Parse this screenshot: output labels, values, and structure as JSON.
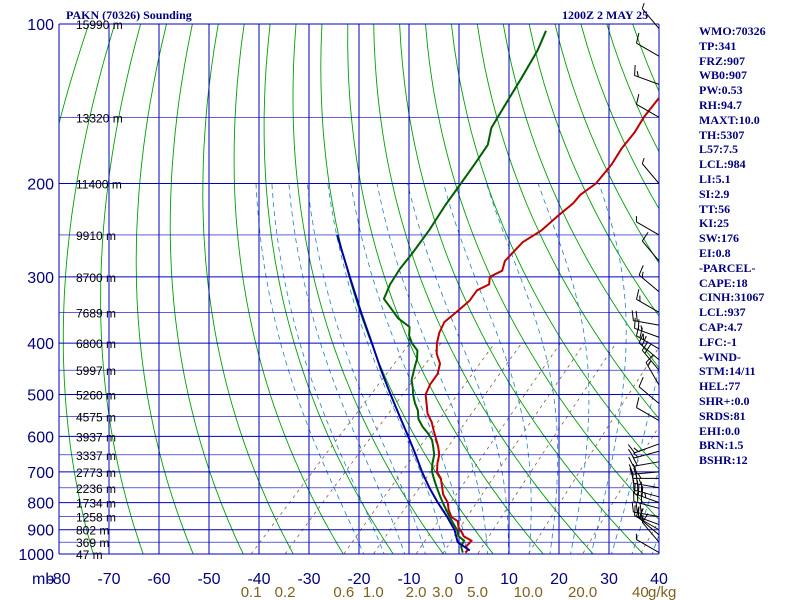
{
  "header": {
    "title": "PAKN (70326) Sounding",
    "timestamp": "1200Z  2 MAY 25"
  },
  "indices": [
    "WMO:70326",
    "TP:341",
    "FRZ:907",
    "WB0:907",
    "PW:0.53",
    "RH:94.7",
    "MAXT:10.0",
    "TH:5307",
    "L57:7.5",
    "LCL:984",
    "LI:5.1",
    "SI:2.9",
    "TT:56",
    "KI:25",
    "SW:176",
    "EI:0.8",
    "-PARCEL-",
    "CAPE:18",
    "CINH:31067",
    "LCL:937",
    "CAP:4.7",
    "LFC:-1",
    "-WIND-",
    "STM:14/11",
    "HEL:77",
    "SHR+:0.0",
    "SRDS:81",
    "EHI:0.0",
    "BRN:1.5",
    "BSHR:12"
  ],
  "colors": {
    "axis_text": "#000080",
    "isobar_isotherm": "#0000c0",
    "dry_adiabat": "#00a000",
    "moist_adiabat": "#2080c0",
    "mixing_ratio": "#806040",
    "temperature": "#c00000",
    "dewpoint": "#006000",
    "parcel": "#0000a0",
    "wind_barb": "#000000"
  },
  "chart_data": {
    "type": "line",
    "ylabel": "mb",
    "y_scale": "log",
    "ylim": [
      1000,
      100
    ],
    "xlim": [
      -80,
      40
    ],
    "pressure_ticks": [
      100,
      200,
      300,
      400,
      500,
      600,
      700,
      800,
      900,
      1000
    ],
    "temperature_ticks": [
      -80,
      -70,
      -60,
      -50,
      -40,
      -30,
      -20,
      -10,
      0,
      10,
      20,
      30,
      40
    ],
    "height_labels": [
      {
        "p": 100,
        "label": "15990 m"
      },
      {
        "p": 150,
        "label": "13320 m"
      },
      {
        "p": 200,
        "label": "11400 m"
      },
      {
        "p": 250,
        "label": "9910 m"
      },
      {
        "p": 300,
        "label": "8700 m"
      },
      {
        "p": 350,
        "label": "7689 m"
      },
      {
        "p": 400,
        "label": "6800 m"
      },
      {
        "p": 450,
        "label": "5997 m"
      },
      {
        "p": 500,
        "label": "5260 m"
      },
      {
        "p": 550,
        "label": "4575 m"
      },
      {
        "p": 600,
        "label": "3937 m"
      },
      {
        "p": 650,
        "label": "3337 m"
      },
      {
        "p": 700,
        "label": "2773 m"
      },
      {
        "p": 750,
        "label": "2236 m"
      },
      {
        "p": 800,
        "label": "1734 m"
      },
      {
        "p": 850,
        "label": "1258 m"
      },
      {
        "p": 900,
        "label": "802 m"
      },
      {
        "p": 950,
        "label": "369 m"
      },
      {
        "p": 1000,
        "label": "47 m"
      }
    ],
    "mixing_ratio_ticks": [
      {
        "w": 0.1,
        "label": "0.1"
      },
      {
        "w": 0.2,
        "label": "0.2"
      },
      {
        "w": 0.6,
        "label": "0.6"
      },
      {
        "w": 1.0,
        "label": "1.0"
      },
      {
        "w": 2.0,
        "label": "2.0"
      },
      {
        "w": 3.0,
        "label": "3.0"
      },
      {
        "w": 5.0,
        "label": "5.0"
      },
      {
        "w": 10.0,
        "label": "10.0"
      },
      {
        "w": 20.0,
        "label": "20.0"
      },
      {
        "w": 40.0,
        "label": "40"
      }
    ],
    "mixing_ratio_unit": "g/kg",
    "series": [
      {
        "id": "temperature",
        "points": [
          [
            994,
            1.0
          ],
          [
            983,
            1.0
          ],
          [
            968,
            0.0
          ],
          [
            944,
            0.0
          ],
          [
            925,
            -2.5
          ],
          [
            911,
            -3.5
          ],
          [
            893,
            -5.0
          ],
          [
            867,
            -6.5
          ],
          [
            852,
            -8.5
          ],
          [
            825,
            -10.5
          ],
          [
            800,
            -12.0
          ],
          [
            772,
            -14.5
          ],
          [
            749,
            -16.0
          ],
          [
            720,
            -18.0
          ],
          [
            700,
            -20.0
          ],
          [
            675,
            -21.5
          ],
          [
            650,
            -22.8
          ],
          [
            628,
            -24.5
          ],
          [
            606,
            -26.5
          ],
          [
            585,
            -28.5
          ],
          [
            564,
            -30.5
          ],
          [
            543,
            -33.0
          ],
          [
            521,
            -35.0
          ],
          [
            500,
            -37.0
          ],
          [
            479,
            -38.0
          ],
          [
            457,
            -38.5
          ],
          [
            437,
            -40.0
          ],
          [
            419,
            -42.5
          ],
          [
            400,
            -44.5
          ],
          [
            382,
            -46.0
          ],
          [
            365,
            -47.0
          ],
          [
            350,
            -46.5
          ],
          [
            333,
            -46.0
          ],
          [
            318,
            -46.5
          ],
          [
            310,
            -45.2
          ],
          [
            300,
            -46.5
          ],
          [
            292,
            -45.2
          ],
          [
            280,
            -46.5
          ],
          [
            269,
            -46.5
          ],
          [
            258,
            -46.5
          ],
          [
            245,
            -45.0
          ],
          [
            231,
            -44.5
          ],
          [
            218,
            -43.8
          ],
          [
            210,
            -44.0
          ],
          [
            200,
            -43.0
          ],
          [
            184,
            -43.5
          ],
          [
            172,
            -44.5
          ],
          [
            160,
            -45.0
          ],
          [
            150,
            -46.0
          ],
          [
            141,
            -46.5
          ],
          [
            131,
            -47.0
          ],
          [
            120,
            -48.0
          ],
          [
            108,
            -49.5
          ],
          [
            100,
            -50.0
          ]
        ]
      },
      {
        "id": "dewpoint",
        "points": [
          [
            994,
            0.5
          ],
          [
            968,
            -1.0
          ],
          [
            944,
            -1.5
          ],
          [
            925,
            -3.5
          ],
          [
            900,
            -5.0
          ],
          [
            875,
            -7.0
          ],
          [
            850,
            -9.0
          ],
          [
            825,
            -11.0
          ],
          [
            800,
            -13.0
          ],
          [
            775,
            -15.0
          ],
          [
            750,
            -17.0
          ],
          [
            725,
            -19.0
          ],
          [
            700,
            -21.0
          ],
          [
            675,
            -22.5
          ],
          [
            650,
            -23.8
          ],
          [
            628,
            -25.5
          ],
          [
            610,
            -27.0
          ],
          [
            593,
            -29.0
          ],
          [
            575,
            -31.5
          ],
          [
            556,
            -33.8
          ],
          [
            536,
            -35.5
          ],
          [
            519,
            -37.5
          ],
          [
            500,
            -39.5
          ],
          [
            484,
            -41.0
          ],
          [
            470,
            -42.5
          ],
          [
            456,
            -43.5
          ],
          [
            442,
            -44.5
          ],
          [
            428,
            -45.5
          ],
          [
            413,
            -47.0
          ],
          [
            400,
            -49.5
          ],
          [
            387,
            -51.5
          ],
          [
            373,
            -53.0
          ],
          [
            359,
            -57.0
          ],
          [
            343,
            -60.5
          ],
          [
            330,
            -63.5
          ],
          [
            310,
            -65.0
          ],
          [
            290,
            -66.0
          ],
          [
            270,
            -66.5
          ],
          [
            245,
            -67.5
          ],
          [
            220,
            -69.0
          ],
          [
            200,
            -70.0
          ],
          [
            183,
            -71.0
          ],
          [
            169,
            -72.0
          ],
          [
            157,
            -74.5
          ],
          [
            143,
            -76.0
          ],
          [
            126,
            -78.0
          ],
          [
            112,
            -80.0
          ],
          [
            103,
            -82.0
          ]
        ]
      },
      {
        "id": "parcel",
        "points": [
          [
            985,
            1.5
          ],
          [
            950,
            -2.5
          ],
          [
            900,
            -5.5
          ],
          [
            850,
            -9.5
          ],
          [
            800,
            -14.0
          ],
          [
            750,
            -18.5
          ],
          [
            700,
            -23.0
          ],
          [
            650,
            -27.5
          ],
          [
            600,
            -32.5
          ],
          [
            550,
            -38.0
          ],
          [
            500,
            -44.0
          ],
          [
            450,
            -50.5
          ],
          [
            400,
            -57.5
          ],
          [
            350,
            -65.5
          ],
          [
            300,
            -74.5
          ],
          [
            250,
            -85.0
          ]
        ]
      }
    ],
    "wind_barbs": [
      {
        "p": 994,
        "dir": 300,
        "kt": 5
      },
      {
        "p": 950,
        "dir": 320,
        "kt": 10
      },
      {
        "p": 920,
        "dir": 310,
        "kt": 15
      },
      {
        "p": 900,
        "dir": 300,
        "kt": 20
      },
      {
        "p": 880,
        "dir": 290,
        "kt": 25
      },
      {
        "p": 850,
        "dir": 280,
        "kt": 30
      },
      {
        "p": 820,
        "dir": 285,
        "kt": 30
      },
      {
        "p": 800,
        "dir": 290,
        "kt": 35
      },
      {
        "p": 780,
        "dir": 285,
        "kt": 30
      },
      {
        "p": 750,
        "dir": 280,
        "kt": 25
      },
      {
        "p": 720,
        "dir": 270,
        "kt": 25
      },
      {
        "p": 700,
        "dir": 265,
        "kt": 20
      },
      {
        "p": 670,
        "dir": 260,
        "kt": 20
      },
      {
        "p": 640,
        "dir": 255,
        "kt": 15
      },
      {
        "p": 620,
        "dir": 250,
        "kt": 15
      },
      {
        "p": 560,
        "dir": 300,
        "kt": 10
      },
      {
        "p": 520,
        "dir": 310,
        "kt": 10
      },
      {
        "p": 480,
        "dir": 330,
        "kt": 15
      },
      {
        "p": 450,
        "dir": 320,
        "kt": 20
      },
      {
        "p": 430,
        "dir": 310,
        "kt": 20
      },
      {
        "p": 410,
        "dir": 300,
        "kt": 25
      },
      {
        "p": 390,
        "dir": 290,
        "kt": 25
      },
      {
        "p": 370,
        "dir": 280,
        "kt": 20
      },
      {
        "p": 350,
        "dir": 300,
        "kt": 15
      },
      {
        "p": 320,
        "dir": 310,
        "kt": 15
      },
      {
        "p": 280,
        "dir": 320,
        "kt": 10
      },
      {
        "p": 250,
        "dir": 300,
        "kt": 5
      },
      {
        "p": 200,
        "dir": 320,
        "kt": 5
      },
      {
        "p": 150,
        "dir": 300,
        "kt": 10
      },
      {
        "p": 130,
        "dir": 290,
        "kt": 15
      },
      {
        "p": 115,
        "dir": 300,
        "kt": 10
      },
      {
        "p": 102,
        "dir": 320,
        "kt": 5
      }
    ]
  }
}
